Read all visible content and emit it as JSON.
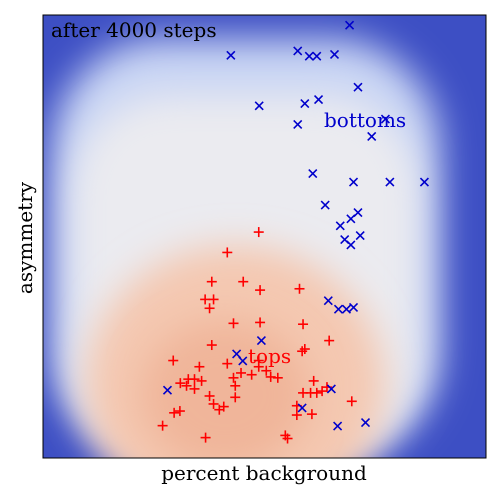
{
  "chart_data": {
    "type": "scatter",
    "title": "",
    "annotation": "after 4000 steps",
    "xlabel": "percent background",
    "ylabel": "asymmetry",
    "xlim": [
      0,
      100
    ],
    "ylim": [
      0,
      100
    ],
    "grid": false,
    "background": "decision-region heatmap (warm peach/orange over the lower-left region where tops are predicted, fading through white to blue over the surrounding region where bottoms are predicted)",
    "colors": {
      "tops": "#ff0000",
      "bottoms": "#0000cc",
      "heat_warm": "#f2b79b",
      "heat_mid": "#dfe6f7",
      "heat_cool": "#3d4fc4"
    },
    "series": [
      {
        "name": "tops",
        "marker": "+",
        "points": [
          [
            48.7,
            51.0
          ],
          [
            41.6,
            46.4
          ],
          [
            38.1,
            39.8
          ],
          [
            45.2,
            39.8
          ],
          [
            49.0,
            37.9
          ],
          [
            57.9,
            38.2
          ],
          [
            36.6,
            35.8
          ],
          [
            38.5,
            35.8
          ],
          [
            37.6,
            33.8
          ],
          [
            43.0,
            30.4
          ],
          [
            49.0,
            30.6
          ],
          [
            58.7,
            30.2
          ],
          [
            64.6,
            26.5
          ],
          [
            38.1,
            25.5
          ],
          [
            59.1,
            24.6
          ],
          [
            58.5,
            24.1
          ],
          [
            48.7,
            22.0
          ],
          [
            41.6,
            21.3
          ],
          [
            29.4,
            22.0
          ],
          [
            35.3,
            20.6
          ],
          [
            48.7,
            20.6
          ],
          [
            50.4,
            19.7
          ],
          [
            47.1,
            18.8
          ],
          [
            44.7,
            19.2
          ],
          [
            51.4,
            18.3
          ],
          [
            34.2,
            17.8
          ],
          [
            53.0,
            18.1
          ],
          [
            43.0,
            18.1
          ],
          [
            32.8,
            17.8
          ],
          [
            35.8,
            17.4
          ],
          [
            61.1,
            17.4
          ],
          [
            32.4,
            16.3
          ],
          [
            31.0,
            16.9
          ],
          [
            43.4,
            16.3
          ],
          [
            34.2,
            15.6
          ],
          [
            64.1,
            16.0
          ],
          [
            58.7,
            14.7
          ],
          [
            63.0,
            15.1
          ],
          [
            60.4,
            14.7
          ],
          [
            61.8,
            14.7
          ],
          [
            37.6,
            14.0
          ],
          [
            43.4,
            13.7
          ],
          [
            69.7,
            12.8
          ],
          [
            38.5,
            12.2
          ],
          [
            57.3,
            11.8
          ],
          [
            40.8,
            11.6
          ],
          [
            39.8,
            10.9
          ],
          [
            30.9,
            10.6
          ],
          [
            29.6,
            10.2
          ],
          [
            60.7,
            9.9
          ],
          [
            57.3,
            9.7
          ],
          [
            27.0,
            7.3
          ],
          [
            36.7,
            4.6
          ],
          [
            54.7,
            5.1
          ],
          [
            55.2,
            4.4
          ]
        ]
      },
      {
        "name": "bottoms",
        "marker": "x",
        "points": [
          [
            69.2,
            97.7
          ],
          [
            42.4,
            90.9
          ],
          [
            57.5,
            91.9
          ],
          [
            60.1,
            90.7
          ],
          [
            61.8,
            90.7
          ],
          [
            65.8,
            91.1
          ],
          [
            71.1,
            83.7
          ],
          [
            62.2,
            80.9
          ],
          [
            59.1,
            80.0
          ],
          [
            48.8,
            79.5
          ],
          [
            77.3,
            76.5
          ],
          [
            57.5,
            75.3
          ],
          [
            74.2,
            72.6
          ],
          [
            60.9,
            64.2
          ],
          [
            70.1,
            62.3
          ],
          [
            78.3,
            62.3
          ],
          [
            86.1,
            62.3
          ],
          [
            63.7,
            57.1
          ],
          [
            71.1,
            55.4
          ],
          [
            69.5,
            54.0
          ],
          [
            67.1,
            52.4
          ],
          [
            71.6,
            50.2
          ],
          [
            68.1,
            49.3
          ],
          [
            69.5,
            48.1
          ],
          [
            64.4,
            35.5
          ],
          [
            70.1,
            34.0
          ],
          [
            66.7,
            33.6
          ],
          [
            68.5,
            33.6
          ],
          [
            49.3,
            26.5
          ],
          [
            43.7,
            23.5
          ],
          [
            45.1,
            21.9
          ],
          [
            28.1,
            15.3
          ],
          [
            65.1,
            15.6
          ],
          [
            58.5,
            11.3
          ],
          [
            66.5,
            7.2
          ],
          [
            72.8,
            8.0
          ]
        ]
      }
    ],
    "labels": [
      {
        "text": "tops",
        "x": 52.0,
        "y": 22.9,
        "color": "#ff0000"
      },
      {
        "text": "bottoms",
        "x": 63.0,
        "y": 77.0,
        "color": "#0000cc"
      }
    ]
  }
}
